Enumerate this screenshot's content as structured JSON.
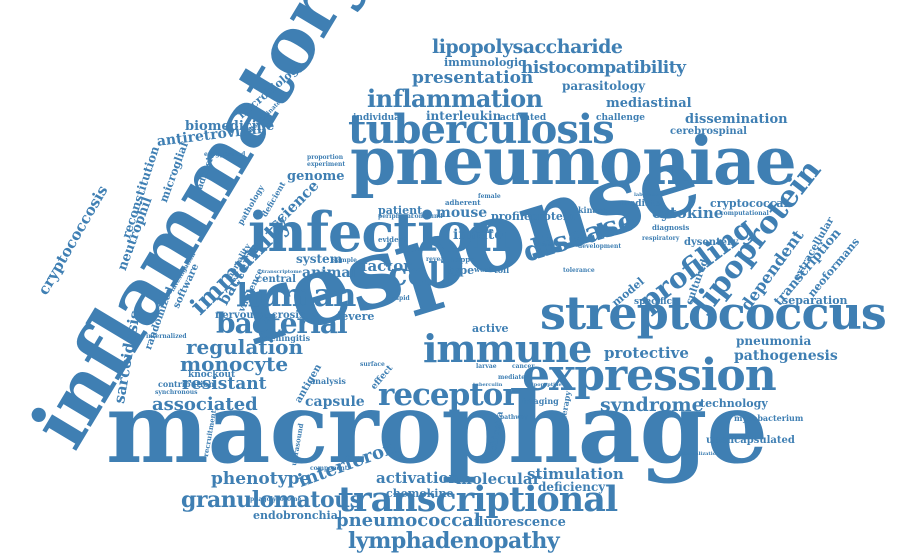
{
  "words": {
    "macrophage": "macrophage",
    "response": "response",
    "inflammatory": "inflammatory",
    "pneumoniae": "pneumoniae",
    "infection": "infection",
    "streptococcus": "streptococcus",
    "expression": "expression",
    "tuberculosis": "tuberculosis",
    "transcriptional": "transcriptional",
    "immune": "immune",
    "receptor": "receptor",
    "human": "human",
    "bacterial": "bacterial",
    "cell": "cell",
    "disease": "disease",
    "lipoprotein": "lipoprotein",
    "profiling": "profiling",
    "immunity": "immunity",
    "inflammation": "inflammation",
    "lipopolysaccharide": "lipopolysaccharide",
    "histocompatibility": "histocompatibility",
    "presentation": "presentation",
    "lymphadenopathy": "lymphadenopathy",
    "granulomatous": "granulomatous",
    "pneumococcal": "pneumococcal",
    "regulation": "regulation",
    "monocyte": "monocyte",
    "associated": "associated",
    "resistant": "resistant",
    "syndrome": "syndrome",
    "protective": "protective",
    "pathogenesis": "pathogenesis",
    "pneumonia": "pneumonia",
    "cytokine": "cytokine",
    "interferon": "interferon",
    "phenotype": "phenotype",
    "activation": "activation",
    "molecular": "molecular",
    "stimulation": "stimulation",
    "deficiency": "deficiency",
    "fluorescence": "fluorescence",
    "endobronchial": "endobronchial",
    "chemokine": "chemokine",
    "capsule": "capsule",
    "factor": "factor",
    "animal": "animal",
    "bacteria": "bacteria",
    "sarcoidosis": "sarcoidosis",
    "cryptococcosis": "cryptococcosis",
    "neutrophil": "neutrophil",
    "reconstitution": "reconstitution",
    "antiretroviral": "antiretroviral",
    "biomedicine": "biomedicine",
    "microbiology": "microbiology",
    "immunologic": "immunologic",
    "parasitology": "parasitology",
    "mediastinal": "mediastinal",
    "interleukin": "interleukin",
    "activated": "activated",
    "challenge": "challenge",
    "dissemination": "dissemination",
    "cerebrospinal": "cerebrospinal",
    "individual": "individual",
    "genome": "genome",
    "science": "science",
    "system": "system",
    "patient": "patient",
    "mouse": "mouse",
    "innate": "innate",
    "profile": "profile",
    "protein": "protein",
    "mediate": "mediate",
    "cryptococcal": "cryptococcal",
    "dysentery": "dysentery",
    "dependent": "dependent",
    "transcription": "transcription",
    "extracellular": "extracellular",
    "neoformans": "neoformans",
    "separation": "separation",
    "cultured": "cultured",
    "model": "model",
    "specific": "specific",
    "technology": "technology",
    "mycobacterium": "mycobacterium",
    "unencapsulated": "unencapsulated",
    "internalization": "internalization",
    "type": "type",
    "active": "active",
    "severe": "severe",
    "necrosis": "necrosis",
    "nervous": "nervous",
    "central": "central",
    "meningitis": "meningitis",
    "knockout": "knockout",
    "contribution": "contribution",
    "synchronous": "synchronous",
    "recruitment": "recruitment",
    "antigen": "antigen",
    "analysis": "analysis",
    "effect": "effect",
    "imaging": "imaging",
    "therapy": "therapy",
    "shigella": "shigella",
    "toll": "toll",
    "kinase": "kinase",
    "kappa": "kappa",
    "female": "female",
    "world": "world",
    "reveal": "reveal",
    "sample": "sample",
    "rapid": "rapid",
    "evident": "evident",
    "time": "time",
    "adherent": "adherent",
    "surface": "surface",
    "mediated": "mediated",
    "larvae": "larvae",
    "cancer": "cancer",
    "pathway": "pathway",
    "tolerance": "tolerance",
    "respiratory": "respiratory",
    "diagnosis": "diagnosis",
    "computational": "computational",
    "development": "development",
    "microglial": "microglial",
    "adhesion": "adhesion",
    "randomized": "randomized",
    "internalized": "internalized",
    "virulence": "virulence",
    "mortality": "mortality",
    "software": "software",
    "pathology": "pathology",
    "deficient": "deficient",
    "investigation": "investigation",
    "exaggerated": "exaggerated",
    "discriminate": "discriminate",
    "proportion": "proportion",
    "experiment": "experiment",
    "component": "component",
    "phagolysosome": "phagolysosome",
    "ultrasound": "ultrasound",
    "transcriptome": "transcriptome",
    "peripheral": "peripheral",
    "confound": "confound",
    "laboratory": "laboratory",
    "dissection": "dissection",
    "tuberculin": "tuberculin",
    "lipopeptide": "lipopeptide"
  }
}
